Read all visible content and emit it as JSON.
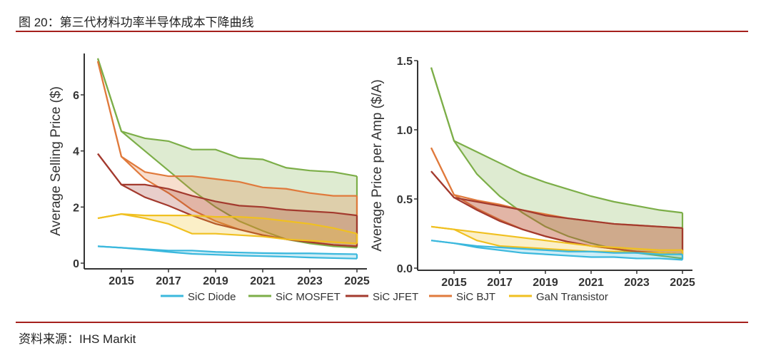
{
  "title": "图 20：第三代材料功率半导体成本下降曲线",
  "source": "资料来源：IHS Markit",
  "colors": {
    "SiC Diode": "#3bb8dd",
    "SiC MOSFET": "#7cae48",
    "SiC JFET": "#a33a2e",
    "SiC BJT": "#e07a3c",
    "GaN Transistor": "#f0c020",
    "rule": "#a5201c"
  },
  "legend": [
    "SiC Diode",
    "SiC MOSFET",
    "SiC JFET",
    "SiC BJT",
    "GaN Transistor"
  ],
  "chart_data": [
    {
      "type": "area",
      "ylabel": "Average Selling Price ($)",
      "x": [
        2014,
        2015,
        2016,
        2017,
        2018,
        2019,
        2020,
        2021,
        2022,
        2023,
        2024,
        2025
      ],
      "xticks": [
        2015,
        2017,
        2019,
        2021,
        2023,
        2025
      ],
      "yticks": [
        0,
        2,
        4,
        6
      ],
      "ylim": [
        0,
        7.4
      ],
      "series": [
        {
          "name": "SiC MOSFET",
          "upper": [
            7.3,
            4.7,
            4.45,
            4.35,
            4.05,
            4.05,
            3.75,
            3.7,
            3.4,
            3.3,
            3.25,
            3.1
          ],
          "lower": [
            7.3,
            4.7,
            4.0,
            3.3,
            2.6,
            2.0,
            1.5,
            1.15,
            0.85,
            0.7,
            0.6,
            0.55
          ]
        },
        {
          "name": "SiC BJT",
          "upper": [
            7.2,
            3.8,
            3.25,
            3.1,
            3.1,
            3.0,
            2.9,
            2.7,
            2.65,
            2.5,
            2.4,
            2.4
          ],
          "lower": [
            7.2,
            3.8,
            3.0,
            2.5,
            1.9,
            1.5,
            1.2,
            1.0,
            0.85,
            0.75,
            0.65,
            0.6
          ]
        },
        {
          "name": "SiC JFET",
          "upper": [
            3.9,
            2.8,
            2.8,
            2.65,
            2.4,
            2.2,
            2.05,
            2.0,
            1.9,
            1.85,
            1.8,
            1.7
          ],
          "lower": [
            3.9,
            2.8,
            2.35,
            2.05,
            1.7,
            1.4,
            1.2,
            1.0,
            0.85,
            0.75,
            0.65,
            0.6
          ]
        },
        {
          "name": "GaN Transistor",
          "upper": [
            1.6,
            1.75,
            1.7,
            1.7,
            1.7,
            1.65,
            1.65,
            1.6,
            1.5,
            1.4,
            1.25,
            1.05
          ],
          "lower": [
            1.6,
            1.75,
            1.6,
            1.4,
            1.05,
            1.05,
            1.0,
            0.95,
            0.85,
            0.8,
            0.75,
            0.7
          ]
        },
        {
          "name": "SiC Diode",
          "upper": [
            0.6,
            0.55,
            0.5,
            0.45,
            0.45,
            0.4,
            0.38,
            0.36,
            0.35,
            0.35,
            0.33,
            0.32
          ],
          "lower": [
            0.6,
            0.55,
            0.48,
            0.4,
            0.33,
            0.3,
            0.27,
            0.25,
            0.23,
            0.2,
            0.18,
            0.16
          ]
        }
      ]
    },
    {
      "type": "area",
      "ylabel": "Average Price per Amp ($/A)",
      "x": [
        2014,
        2015,
        2016,
        2017,
        2018,
        2019,
        2020,
        2021,
        2022,
        2023,
        2024,
        2025
      ],
      "xticks": [
        2015,
        2017,
        2019,
        2021,
        2023,
        2025
      ],
      "yticks": [
        "0.0",
        "0.5",
        "1.0",
        "1.5"
      ],
      "ylim": [
        0,
        1.5
      ],
      "series": [
        {
          "name": "SiC MOSFET",
          "upper": [
            1.45,
            0.92,
            0.84,
            0.76,
            0.68,
            0.62,
            0.57,
            0.52,
            0.48,
            0.45,
            0.42,
            0.4
          ],
          "lower": [
            1.45,
            0.92,
            0.68,
            0.52,
            0.4,
            0.3,
            0.23,
            0.18,
            0.14,
            0.11,
            0.09,
            0.07
          ]
        },
        {
          "name": "SiC BJT",
          "upper": [
            0.87,
            0.53,
            0.49,
            0.46,
            0.42,
            0.39,
            0.36,
            0.34,
            0.32,
            0.31,
            0.3,
            0.29
          ],
          "lower": [
            0.87,
            0.53,
            0.43,
            0.35,
            0.28,
            0.23,
            0.19,
            0.16,
            0.14,
            0.12,
            0.11,
            0.1
          ]
        },
        {
          "name": "SiC JFET",
          "upper": [
            0.7,
            0.51,
            0.48,
            0.45,
            0.42,
            0.38,
            0.36,
            0.34,
            0.32,
            0.31,
            0.3,
            0.29
          ],
          "lower": [
            0.7,
            0.51,
            0.42,
            0.34,
            0.28,
            0.23,
            0.19,
            0.16,
            0.14,
            0.12,
            0.11,
            0.1
          ]
        },
        {
          "name": "GaN Transistor",
          "upper": [
            0.3,
            0.28,
            0.26,
            0.24,
            0.22,
            0.2,
            0.18,
            0.16,
            0.15,
            0.14,
            0.13,
            0.13
          ],
          "lower": [
            0.3,
            0.28,
            0.2,
            0.16,
            0.15,
            0.14,
            0.13,
            0.12,
            0.12,
            0.11,
            0.11,
            0.1
          ]
        },
        {
          "name": "SiC Diode",
          "upper": [
            0.2,
            0.18,
            0.16,
            0.15,
            0.14,
            0.13,
            0.12,
            0.12,
            0.11,
            0.11,
            0.1,
            0.1
          ],
          "lower": [
            0.2,
            0.18,
            0.15,
            0.13,
            0.11,
            0.1,
            0.09,
            0.08,
            0.08,
            0.07,
            0.07,
            0.06
          ]
        }
      ]
    }
  ]
}
